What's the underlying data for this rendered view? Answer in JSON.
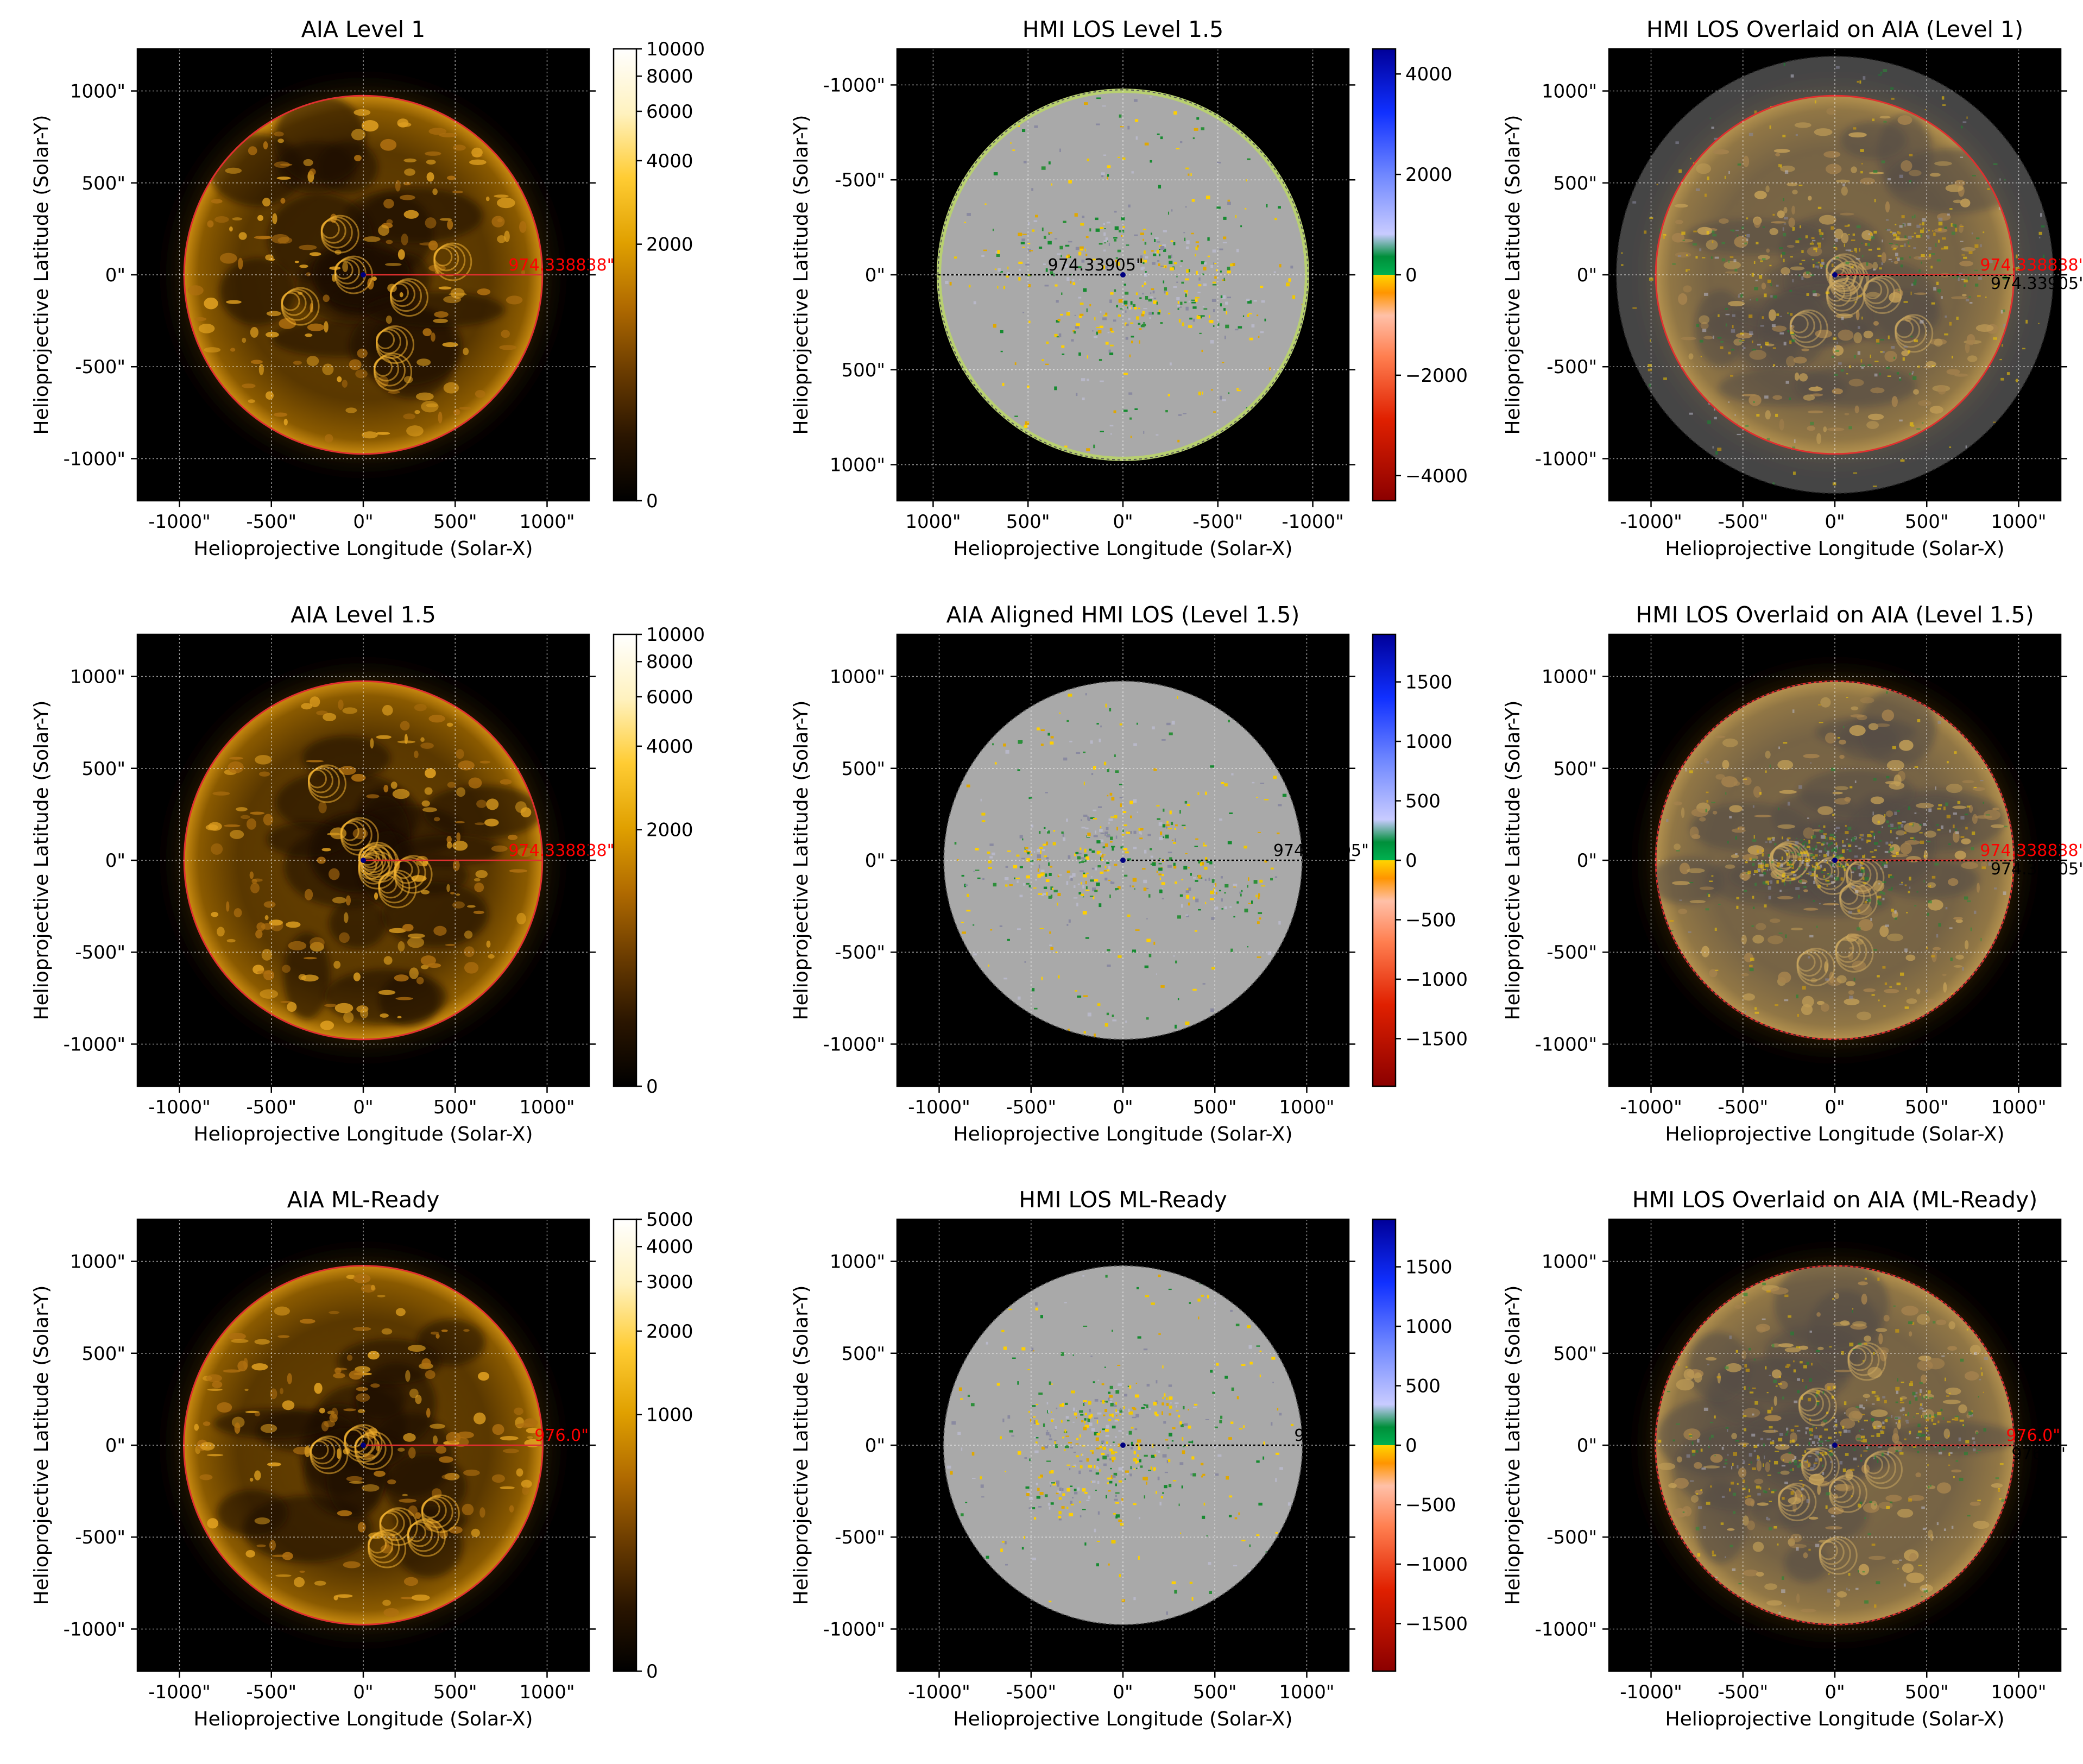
{
  "figure": {
    "background": "#ffffff"
  },
  "colors": {
    "aia_colormap": [
      "#000000",
      "#2a1500",
      "#6b3c00",
      "#b06a00",
      "#e0a000",
      "#ffcc33",
      "#fff2bf",
      "#ffffff"
    ],
    "hmi_colormap": [
      "#8b0000",
      "#e02000",
      "#ff7f50",
      "#ffc0a8",
      "#ff9500",
      "#ffd500",
      "#00b050",
      "#008f3a",
      "#c8cbff",
      "#7088ff",
      "#1030ff",
      "#000099"
    ],
    "disk_gray": "#a9a9a9",
    "aia_limb_line": "#e03030",
    "hmi_limb_line": "#000000",
    "radius_label_red": "#ff0000",
    "radius_label_black": "#000000"
  },
  "panels": [
    {
      "title": "AIA Level 1",
      "type": "aia",
      "xlabel": "Helioprojective Longitude (Solar-X)",
      "ylabel": "Helioprojective Latitude (Solar-Y)",
      "xlim": [
        -1229,
        1229
      ],
      "ylim": [
        -1229,
        1229
      ],
      "x_reversed": false,
      "y_reversed": false,
      "xticks": [
        "-1000\"",
        "-500\"",
        "0\"",
        "500\"",
        "1000\""
      ],
      "xtick_values": [
        -1000,
        -500,
        0,
        500,
        1000
      ],
      "yticks": [
        "-1000\"",
        "-500\"",
        "0\"",
        "500\"",
        "1000\""
      ],
      "ytick_values": [
        -1000,
        -500,
        0,
        500,
        1000
      ],
      "disk_radius": 974.338838,
      "radius_labels": [
        {
          "text": "974.338838\"",
          "color": "red"
        }
      ],
      "colorbar": {
        "ticks": [
          "0",
          "2000",
          "4000",
          "6000",
          "8000",
          "10000"
        ],
        "values": [
          0,
          2000,
          4000,
          6000,
          8000,
          10000
        ],
        "scale": "asinh",
        "min": 0,
        "max": 10000
      },
      "grid": true
    },
    {
      "title": "HMI LOS Level 1.5",
      "type": "hmi",
      "xlabel": "Helioprojective Longitude (Solar-X)",
      "ylabel": "Helioprojective Latitude (Solar-Y)",
      "xlim": [
        1190,
        -1190
      ],
      "ylim": [
        1190,
        -1190
      ],
      "x_reversed": true,
      "y_reversed": true,
      "xticks": [
        "1000\"",
        "500\"",
        "0\"",
        "-500\"",
        "-1000\""
      ],
      "xtick_values": [
        1000,
        500,
        0,
        -500,
        -1000
      ],
      "yticks": [
        "-1000\"",
        "-500\"",
        "0\"",
        "500\"",
        "1000\""
      ],
      "ytick_values": [
        -1000,
        -500,
        0,
        500,
        1000
      ],
      "disk_radius": 974.33905,
      "radius_labels": [
        {
          "text": "974.33905\"",
          "color": "black"
        }
      ],
      "colorbar": {
        "ticks": [
          "−4000",
          "−2000",
          "0",
          "2000",
          "4000"
        ],
        "values": [
          -4000,
          -2000,
          0,
          2000,
          4000
        ],
        "scale": "linear",
        "min": -4500,
        "max": 4500
      },
      "grid": true
    },
    {
      "title": "HMI LOS Overlaid on AIA (Level 1)",
      "type": "overlay",
      "xlabel": "Helioprojective Longitude (Solar-X)",
      "ylabel": "Helioprojective Latitude (Solar-Y)",
      "xlim": [
        -1229,
        1229
      ],
      "ylim": [
        -1229,
        1229
      ],
      "x_reversed": false,
      "y_reversed": false,
      "xticks": [
        "-1000\"",
        "-500\"",
        "0\"",
        "500\"",
        "1000\""
      ],
      "xtick_values": [
        -1000,
        -500,
        0,
        500,
        1000
      ],
      "yticks": [
        "-1000\"",
        "-500\"",
        "0\"",
        "500\"",
        "1000\""
      ],
      "ytick_values": [
        -1000,
        -500,
        0,
        500,
        1000
      ],
      "disk_radius": 974.338838,
      "radius_labels": [
        {
          "text": "974.338838\"",
          "color": "red"
        },
        {
          "text": "974.33905\"",
          "color": "black"
        }
      ],
      "grid": true
    },
    {
      "title": "AIA Level 1.5",
      "type": "aia",
      "xlabel": "Helioprojective Longitude (Solar-X)",
      "ylabel": "Helioprojective Latitude (Solar-Y)",
      "xlim": [
        -1229,
        1229
      ],
      "ylim": [
        -1229,
        1229
      ],
      "x_reversed": false,
      "y_reversed": false,
      "xticks": [
        "-1000\"",
        "-500\"",
        "0\"",
        "500\"",
        "1000\""
      ],
      "xtick_values": [
        -1000,
        -500,
        0,
        500,
        1000
      ],
      "yticks": [
        "-1000\"",
        "-500\"",
        "0\"",
        "500\"",
        "1000\""
      ],
      "ytick_values": [
        -1000,
        -500,
        0,
        500,
        1000
      ],
      "disk_radius": 974.338838,
      "radius_labels": [
        {
          "text": "974.338838\"",
          "color": "red"
        }
      ],
      "colorbar": {
        "ticks": [
          "0",
          "2000",
          "4000",
          "6000",
          "8000",
          "10000"
        ],
        "values": [
          0,
          2000,
          4000,
          6000,
          8000,
          10000
        ],
        "scale": "asinh",
        "min": 0,
        "max": 10000
      },
      "grid": true
    },
    {
      "title": "AIA Aligned HMI LOS (Level 1.5)",
      "type": "hmi",
      "xlabel": "Helioprojective Longitude (Solar-X)",
      "ylabel": "Helioprojective Latitude (Solar-Y)",
      "xlim": [
        -1229,
        1229
      ],
      "ylim": [
        -1229,
        1229
      ],
      "x_reversed": false,
      "y_reversed": false,
      "xticks": [
        "-1000\"",
        "-500\"",
        "0\"",
        "500\"",
        "1000\""
      ],
      "xtick_values": [
        -1000,
        -500,
        0,
        500,
        1000
      ],
      "yticks": [
        "-1000\"",
        "-500\"",
        "0\"",
        "500\"",
        "1000\""
      ],
      "ytick_values": [
        -1000,
        -500,
        0,
        500,
        1000
      ],
      "disk_radius": 974.33905,
      "radius_labels": [
        {
          "text": "974.33905\"",
          "color": "black"
        }
      ],
      "colorbar": {
        "ticks": [
          "−1500",
          "−1000",
          "−500",
          "0",
          "500",
          "1000",
          "1500"
        ],
        "values": [
          -1500,
          -1000,
          -500,
          0,
          500,
          1000,
          1500
        ],
        "scale": "linear",
        "min": -1900,
        "max": 1900
      },
      "grid": true
    },
    {
      "title": "HMI LOS Overlaid on AIA (Level 1.5)",
      "type": "overlay",
      "xlabel": "Helioprojective Longitude (Solar-X)",
      "ylabel": "Helioprojective Latitude (Solar-Y)",
      "xlim": [
        -1229,
        1229
      ],
      "ylim": [
        -1229,
        1229
      ],
      "x_reversed": false,
      "y_reversed": false,
      "xticks": [
        "-1000\"",
        "-500\"",
        "0\"",
        "500\"",
        "1000\""
      ],
      "xtick_values": [
        -1000,
        -500,
        0,
        500,
        1000
      ],
      "yticks": [
        "-1000\"",
        "-500\"",
        "0\"",
        "500\"",
        "1000\""
      ],
      "ytick_values": [
        -1000,
        -500,
        0,
        500,
        1000
      ],
      "disk_radius": 974.338838,
      "radius_labels": [
        {
          "text": "974.338838\"",
          "color": "red"
        },
        {
          "text": "974.33905\"",
          "color": "black"
        }
      ],
      "grid": true
    },
    {
      "title": "AIA ML-Ready",
      "type": "aia",
      "xlabel": "Helioprojective Longitude (Solar-X)",
      "ylabel": "Helioprojective Latitude (Solar-Y)",
      "xlim": [
        -1229,
        1229
      ],
      "ylim": [
        -1229,
        1229
      ],
      "x_reversed": false,
      "y_reversed": false,
      "xticks": [
        "-1000\"",
        "-500\"",
        "0\"",
        "500\"",
        "1000\""
      ],
      "xtick_values": [
        -1000,
        -500,
        0,
        500,
        1000
      ],
      "yticks": [
        "-1000\"",
        "-500\"",
        "0\"",
        "500\"",
        "1000\""
      ],
      "ytick_values": [
        -1000,
        -500,
        0,
        500,
        1000
      ],
      "disk_radius": 976.0,
      "radius_labels": [
        {
          "text": "976.0\"",
          "color": "red"
        }
      ],
      "colorbar": {
        "ticks": [
          "0",
          "1000",
          "2000",
          "3000",
          "4000",
          "5000"
        ],
        "values": [
          0,
          1000,
          2000,
          3000,
          4000,
          5000
        ],
        "scale": "asinh",
        "min": 0,
        "max": 5000
      },
      "grid": true
    },
    {
      "title": "HMI LOS ML-Ready",
      "type": "hmi",
      "xlabel": "Helioprojective Longitude (Solar-X)",
      "ylabel": "Helioprojective Latitude (Solar-Y)",
      "xlim": [
        -1229,
        1229
      ],
      "ylim": [
        -1229,
        1229
      ],
      "x_reversed": false,
      "y_reversed": false,
      "xticks": [
        "-1000\"",
        "-500\"",
        "0\"",
        "500\"",
        "1000\""
      ],
      "xtick_values": [
        -1000,
        -500,
        0,
        500,
        1000
      ],
      "yticks": [
        "-1000\"",
        "-500\"",
        "0\"",
        "500\"",
        "1000\""
      ],
      "ytick_values": [
        -1000,
        -500,
        0,
        500,
        1000
      ],
      "disk_radius": 976.0,
      "radius_labels": [
        {
          "text": "976.0\"",
          "color": "black"
        }
      ],
      "colorbar": {
        "ticks": [
          "−1500",
          "−1000",
          "−500",
          "0",
          "500",
          "1000",
          "1500"
        ],
        "values": [
          -1500,
          -1000,
          -500,
          0,
          500,
          1000,
          1500
        ],
        "scale": "linear",
        "min": -1900,
        "max": 1900
      },
      "grid": true
    },
    {
      "title": "HMI LOS Overlaid on AIA (ML-Ready)",
      "type": "overlay",
      "xlabel": "Helioprojective Longitude (Solar-X)",
      "ylabel": "Helioprojective Latitude (Solar-Y)",
      "xlim": [
        -1229,
        1229
      ],
      "ylim": [
        -1229,
        1229
      ],
      "x_reversed": false,
      "y_reversed": false,
      "xticks": [
        "-1000\"",
        "-500\"",
        "0\"",
        "500\"",
        "1000\""
      ],
      "xtick_values": [
        -1000,
        -500,
        0,
        500,
        1000
      ],
      "yticks": [
        "-1000\"",
        "-500\"",
        "0\"",
        "500\"",
        "1000\""
      ],
      "ytick_values": [
        -1000,
        -500,
        0,
        500,
        1000
      ],
      "disk_radius": 976.0,
      "radius_labels": [
        {
          "text": "976.0\"",
          "color": "red"
        },
        {
          "text": "976.0\"",
          "color": "black"
        }
      ],
      "grid": true
    }
  ],
  "chart_data": [
    {
      "type": "heatmap",
      "title": "AIA Level 1",
      "xlabel": "Helioprojective Longitude (Solar-X)",
      "ylabel": "Helioprojective Latitude (Solar-Y)",
      "xlim": [
        -1229,
        1229
      ],
      "ylim": [
        -1229,
        1229
      ],
      "limb_radius": 974.338838,
      "colorbar_range": [
        0,
        10000
      ]
    },
    {
      "type": "heatmap",
      "title": "HMI LOS Level 1.5",
      "xlabel": "Helioprojective Longitude (Solar-X)",
      "ylabel": "Helioprojective Latitude (Solar-Y)",
      "xlim": [
        1190,
        -1190
      ],
      "ylim": [
        1190,
        -1190
      ],
      "limb_radius": 974.33905,
      "colorbar_range": [
        -4500,
        4500
      ]
    },
    {
      "type": "heatmap",
      "title": "HMI LOS Overlaid on AIA (Level 1)",
      "xlabel": "Helioprojective Longitude (Solar-X)",
      "ylabel": "Helioprojective Latitude (Solar-Y)",
      "xlim": [
        -1229,
        1229
      ],
      "ylim": [
        -1229,
        1229
      ],
      "limb_radii": [
        974.338838,
        974.33905
      ]
    },
    {
      "type": "heatmap",
      "title": "AIA Level 1.5",
      "xlabel": "Helioprojective Longitude (Solar-X)",
      "ylabel": "Helioprojective Latitude (Solar-Y)",
      "xlim": [
        -1229,
        1229
      ],
      "ylim": [
        -1229,
        1229
      ],
      "limb_radius": 974.338838,
      "colorbar_range": [
        0,
        10000
      ]
    },
    {
      "type": "heatmap",
      "title": "AIA Aligned HMI LOS (Level 1.5)",
      "xlabel": "Helioprojective Longitude (Solar-X)",
      "ylabel": "Helioprojective Latitude (Solar-Y)",
      "xlim": [
        -1229,
        1229
      ],
      "ylim": [
        -1229,
        1229
      ],
      "limb_radius": 974.33905,
      "colorbar_range": [
        -1900,
        1900
      ]
    },
    {
      "type": "heatmap",
      "title": "HMI LOS Overlaid on AIA (Level 1.5)",
      "xlabel": "Helioprojective Longitude (Solar-X)",
      "ylabel": "Helioprojective Latitude (Solar-Y)",
      "xlim": [
        -1229,
        1229
      ],
      "ylim": [
        -1229,
        1229
      ],
      "limb_radii": [
        974.338838,
        974.33905
      ]
    },
    {
      "type": "heatmap",
      "title": "AIA ML-Ready",
      "xlabel": "Helioprojective Longitude (Solar-X)",
      "ylabel": "Helioprojective Latitude (Solar-Y)",
      "xlim": [
        -1229,
        1229
      ],
      "ylim": [
        -1229,
        1229
      ],
      "limb_radius": 976.0,
      "colorbar_range": [
        0,
        5000
      ]
    },
    {
      "type": "heatmap",
      "title": "HMI LOS ML-Ready",
      "xlabel": "Helioprojective Longitude (Solar-X)",
      "ylabel": "Helioprojective Latitude (Solar-Y)",
      "xlim": [
        -1229,
        1229
      ],
      "ylim": [
        -1229,
        1229
      ],
      "limb_radius": 976.0,
      "colorbar_range": [
        -1900,
        1900
      ]
    },
    {
      "type": "heatmap",
      "title": "HMI LOS Overlaid on AIA (ML-Ready)",
      "xlabel": "Helioprojective Longitude (Solar-X)",
      "ylabel": "Helioprojective Latitude (Solar-Y)",
      "xlim": [
        -1229,
        1229
      ],
      "ylim": [
        -1229,
        1229
      ],
      "limb_radii": [
        976.0,
        976.0
      ]
    }
  ]
}
